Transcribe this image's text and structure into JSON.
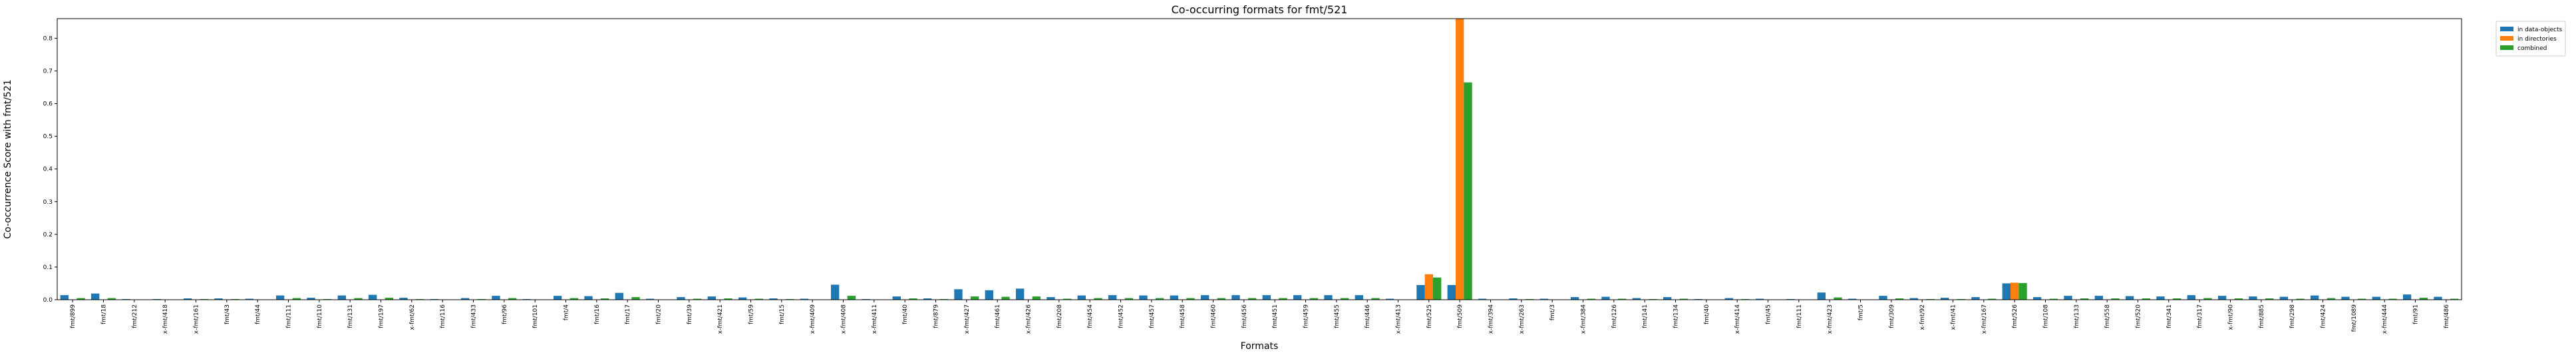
{
  "chart_data": {
    "type": "bar",
    "title": "Co-occurring formats for fmt/521",
    "xlabel": "Formats",
    "ylabel": "Co-occurrence Score with fmt/521",
    "ylim": [
      0,
      0.86
    ],
    "yticks": [
      "0.0",
      "0.1",
      "0.2",
      "0.3",
      "0.4",
      "0.5",
      "0.6",
      "0.7",
      "0.8"
    ],
    "legend_position": "top-right, outside plot",
    "categories": [
      "fmt/899",
      "fmt/18",
      "fmt/212",
      "x-fmt/418",
      "x-fmt/161",
      "fmt/43",
      "fmt/44",
      "fmt/111",
      "fmt/110",
      "fmt/131",
      "fmt/197",
      "x-fmt/62",
      "fmt/116",
      "fmt/433",
      "fmt/96",
      "fmt/101",
      "fmt/4",
      "fmt/16",
      "fmt/17",
      "fmt/20",
      "fmt/39",
      "x-fmt/421",
      "fmt/59",
      "fmt/15",
      "x-fmt/409",
      "x-fmt/408",
      "x-fmt/411",
      "fmt/40",
      "fmt/879",
      "x-fmt/427",
      "fmt/461",
      "x-fmt/426",
      "fmt/208",
      "fmt/454",
      "fmt/452",
      "fmt/457",
      "fmt/458",
      "fmt/460",
      "fmt/456",
      "fmt/451",
      "fmt/459",
      "fmt/455",
      "fmt/446",
      "x-fmt/413",
      "fmt/525",
      "fmt/509",
      "x-fmt/394",
      "x-fmt/263",
      "fmt/3",
      "x-fmt/384",
      "fmt/126",
      "fmt/141",
      "fmt/134",
      "fmt/40",
      "x-fmt/414",
      "fmt/45",
      "fmt/111",
      "x-fmt/423",
      "fmt/5",
      "fmt/309",
      "x-fmt/92",
      "x-fmt/41",
      "x-fmt/167",
      "fmt/526",
      "fmt/108",
      "fmt/133",
      "fmt/558",
      "fmt/520",
      "fmt/341",
      "fmt/317",
      "x-fmt/90",
      "fmt/885",
      "fmt/298",
      "fmt/424",
      "fmt/1089",
      "x-fmt/444",
      "fmt/91",
      "fmt/486"
    ],
    "series": [
      {
        "name": "in data-objects",
        "color": "#1f77b4",
        "values": [
          0.014,
          0.019,
          0.002,
          0.002,
          0.004,
          0.004,
          0.003,
          0.013,
          0.006,
          0.013,
          0.015,
          0.006,
          0.002,
          0.005,
          0.012,
          0.002,
          0.012,
          0.011,
          0.021,
          0.003,
          0.008,
          0.01,
          0.007,
          0.004,
          0.003,
          0.046,
          0.002,
          0.01,
          0.004,
          0.032,
          0.029,
          0.034,
          0.008,
          0.013,
          0.014,
          0.013,
          0.013,
          0.014,
          0.014,
          0.014,
          0.014,
          0.014,
          0.014,
          0.003,
          0.045,
          0.045,
          0.003,
          0.004,
          0.003,
          0.008,
          0.009,
          0.005,
          0.008,
          0.002,
          0.005,
          0.003,
          0.002,
          0.022,
          0.003,
          0.012,
          0.005,
          0.006,
          0.008,
          0.05,
          0.008,
          0.012,
          0.012,
          0.011,
          0.01,
          0.014,
          0.012,
          0.01,
          0.009,
          0.013,
          0.009,
          0.009,
          0.016,
          0.009
        ]
      },
      {
        "name": "in directories",
        "color": "#ff7f0e",
        "values": [
          0.001,
          0.001,
          0.001,
          0.001,
          0.001,
          0.001,
          0.001,
          0.001,
          0.001,
          0.001,
          0.001,
          0.001,
          0.001,
          0.001,
          0.001,
          0.001,
          0.001,
          0.001,
          0.001,
          0.001,
          0.001,
          0.001,
          0.001,
          0.001,
          0.001,
          0.001,
          0.001,
          0.001,
          0.001,
          0.001,
          0.001,
          0.001,
          0.001,
          0.001,
          0.001,
          0.001,
          0.001,
          0.001,
          0.001,
          0.001,
          0.001,
          0.001,
          0.001,
          0.001,
          0.078,
          0.86,
          0.001,
          0.001,
          0.001,
          0.001,
          0.001,
          0.001,
          0.001,
          0.001,
          0.001,
          0.001,
          0.001,
          0.001,
          0.001,
          0.001,
          0.001,
          0.001,
          0.001,
          0.052,
          0.001,
          0.001,
          0.001,
          0.001,
          0.001,
          0.001,
          0.001,
          0.001,
          0.001,
          0.001,
          0.001,
          0.001,
          0.001,
          0.001
        ]
      },
      {
        "name": "combined",
        "color": "#2ca02c",
        "values": [
          0.005,
          0.005,
          0.001,
          0.001,
          0.002,
          0.002,
          0.001,
          0.005,
          0.002,
          0.005,
          0.006,
          0.002,
          0.001,
          0.002,
          0.005,
          0.001,
          0.005,
          0.004,
          0.008,
          0.001,
          0.003,
          0.004,
          0.003,
          0.002,
          0.001,
          0.012,
          0.001,
          0.004,
          0.002,
          0.01,
          0.009,
          0.01,
          0.003,
          0.005,
          0.005,
          0.005,
          0.005,
          0.005,
          0.005,
          0.005,
          0.005,
          0.005,
          0.005,
          0.001,
          0.068,
          0.665,
          0.001,
          0.002,
          0.001,
          0.003,
          0.003,
          0.002,
          0.003,
          0.001,
          0.002,
          0.001,
          0.001,
          0.007,
          0.001,
          0.004,
          0.002,
          0.002,
          0.003,
          0.051,
          0.003,
          0.004,
          0.004,
          0.004,
          0.004,
          0.005,
          0.004,
          0.004,
          0.003,
          0.005,
          0.003,
          0.003,
          0.006,
          0.003
        ]
      }
    ]
  }
}
